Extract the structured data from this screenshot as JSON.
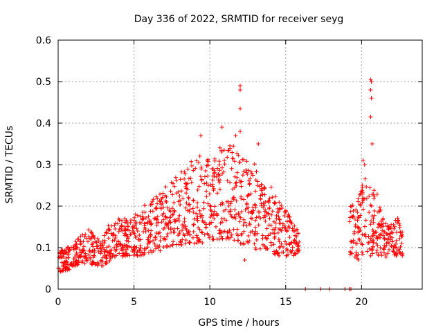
{
  "chart_data": {
    "type": "scatter",
    "title": "Day 336 of 2022, SRMTID for receiver seyg",
    "xlabel": "GPS time / hours",
    "ylabel": "SRMTID / TECUs",
    "xlim": [
      0,
      24
    ],
    "ylim": [
      0,
      0.6
    ],
    "xticks": [
      0,
      5,
      10,
      15,
      20
    ],
    "yticks": [
      0,
      0.1,
      0.2,
      0.3,
      0.4,
      0.5,
      0.6
    ],
    "grid": true,
    "marker": "+",
    "color": "#ff0000",
    "envelope": [
      {
        "x": 0.0,
        "low": 0.04,
        "high": 0.09
      },
      {
        "x": 1.0,
        "low": 0.05,
        "high": 0.11
      },
      {
        "x": 2.0,
        "low": 0.06,
        "high": 0.15
      },
      {
        "x": 2.7,
        "low": 0.05,
        "high": 0.12
      },
      {
        "x": 3.5,
        "low": 0.07,
        "high": 0.17
      },
      {
        "x": 4.5,
        "low": 0.08,
        "high": 0.17
      },
      {
        "x": 5.5,
        "low": 0.08,
        "high": 0.2
      },
      {
        "x": 6.5,
        "low": 0.09,
        "high": 0.23
      },
      {
        "x": 7.5,
        "low": 0.1,
        "high": 0.27
      },
      {
        "x": 8.5,
        "low": 0.11,
        "high": 0.3
      },
      {
        "x": 9.5,
        "low": 0.11,
        "high": 0.33
      },
      {
        "x": 10.5,
        "low": 0.12,
        "high": 0.34
      },
      {
        "x": 11.5,
        "low": 0.12,
        "high": 0.35
      },
      {
        "x": 12.5,
        "low": 0.1,
        "high": 0.32
      },
      {
        "x": 13.5,
        "low": 0.09,
        "high": 0.28
      },
      {
        "x": 14.5,
        "low": 0.08,
        "high": 0.22
      },
      {
        "x": 15.5,
        "low": 0.08,
        "high": 0.16
      },
      {
        "x": 15.9,
        "low": 0.09,
        "high": 0.15
      }
    ],
    "envelope_2": [
      {
        "x": 19.2,
        "low": 0.08,
        "high": 0.2
      },
      {
        "x": 19.8,
        "low": 0.07,
        "high": 0.22
      },
      {
        "x": 20.3,
        "low": 0.08,
        "high": 0.28
      },
      {
        "x": 20.8,
        "low": 0.08,
        "high": 0.26
      },
      {
        "x": 21.3,
        "low": 0.07,
        "high": 0.2
      },
      {
        "x": 21.8,
        "low": 0.08,
        "high": 0.15
      },
      {
        "x": 22.3,
        "low": 0.08,
        "high": 0.18
      },
      {
        "x": 22.7,
        "low": 0.08,
        "high": 0.14
      }
    ],
    "density_per_hour": 70,
    "outliers": [
      {
        "x": 12.0,
        "y": 0.49
      },
      {
        "x": 12.0,
        "y": 0.48
      },
      {
        "x": 12.0,
        "y": 0.435
      },
      {
        "x": 11.7,
        "y": 0.37
      },
      {
        "x": 12.0,
        "y": 0.38
      },
      {
        "x": 12.3,
        "y": 0.07
      },
      {
        "x": 20.6,
        "y": 0.505
      },
      {
        "x": 20.65,
        "y": 0.5
      },
      {
        "x": 20.6,
        "y": 0.48
      },
      {
        "x": 20.65,
        "y": 0.46
      },
      {
        "x": 20.6,
        "y": 0.415
      },
      {
        "x": 20.7,
        "y": 0.35
      },
      {
        "x": 20.1,
        "y": 0.31
      },
      {
        "x": 20.2,
        "y": 0.3
      },
      {
        "x": 9.4,
        "y": 0.37
      },
      {
        "x": 10.8,
        "y": 0.39
      },
      {
        "x": 13.2,
        "y": 0.35
      }
    ],
    "zero_points": [
      {
        "x": 16.3,
        "y": 0
      },
      {
        "x": 17.3,
        "y": 0
      },
      {
        "x": 17.9,
        "y": 0
      },
      {
        "x": 18.9,
        "y": 0
      },
      {
        "x": 19.2,
        "y": 0
      },
      {
        "x": 19.3,
        "y": 0
      }
    ]
  }
}
